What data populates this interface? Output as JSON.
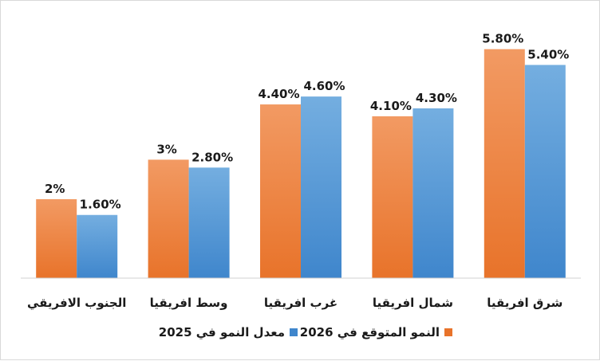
{
  "chart_data": {
    "type": "bar",
    "categories": [
      "شرق افريقيا",
      "شمال افريقيا",
      "غرب افريقيا",
      "وسط افريقيا",
      "الجنوب الافريقي"
    ],
    "series": [
      {
        "name": "النمو المتوقع في 2026",
        "values": [
          5.8,
          4.1,
          4.4,
          3.0,
          2.0
        ],
        "labels": [
          "5.80%",
          "4.10%",
          "4.40%",
          "3%",
          "2%"
        ],
        "color_top": "#f29a63",
        "color_bottom": "#e8732a"
      },
      {
        "name": "معدل النمو في 2025",
        "values": [
          5.4,
          4.3,
          4.6,
          2.8,
          1.6
        ],
        "labels": [
          "5.40%",
          "4.30%",
          "4.60%",
          "2.80%",
          "1.60%"
        ],
        "color_top": "#74aee0",
        "color_bottom": "#3f86cc"
      }
    ],
    "xlabel": "",
    "ylabel": "",
    "ylim": [
      0,
      6.5
    ],
    "grid": false,
    "legend": "bottom"
  }
}
